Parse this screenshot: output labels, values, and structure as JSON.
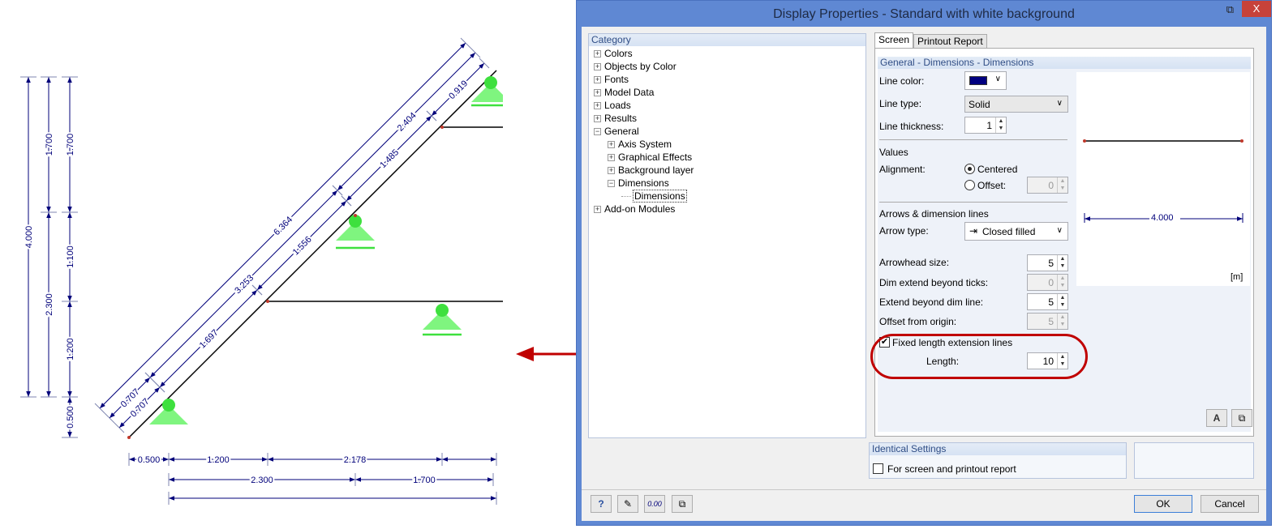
{
  "drawing": {
    "vertical": [
      "4.000",
      "1.700",
      "2.300",
      "1.700",
      "1.100",
      "1.200",
      "0.500"
    ],
    "horizontal": [
      "0.500",
      "1.200",
      "2.178",
      "2.300",
      "1.700"
    ],
    "diagonal": [
      "0.707",
      "1.697",
      "1.556",
      "1.485",
      "0.919",
      "0.707",
      "3.253",
      "2.404",
      "6.364"
    ],
    "colors": {
      "dimension": "#00007a",
      "member": "#000000",
      "support": "#7ff57f",
      "node": "#c0392b",
      "annotation_arrow": "#c00000"
    }
  },
  "dialog": {
    "title": "Display Properties - Standard with white background",
    "close_label": "X",
    "category": {
      "header": "Category",
      "items": [
        {
          "label": "Colors",
          "expander": "+"
        },
        {
          "label": "Objects by Color",
          "expander": "+"
        },
        {
          "label": "Fonts",
          "expander": "+"
        },
        {
          "label": "Model Data",
          "expander": "+"
        },
        {
          "label": "Loads",
          "expander": "+"
        },
        {
          "label": "Results",
          "expander": "+"
        },
        {
          "label": "General",
          "expander": "−"
        },
        {
          "label": "Axis System",
          "expander": "+"
        },
        {
          "label": "Graphical Effects",
          "expander": "+"
        },
        {
          "label": "Background layer",
          "expander": "+"
        },
        {
          "label": "Dimensions",
          "expander": "−"
        },
        {
          "label": "Dimensions",
          "expander": ""
        },
        {
          "label": "Add-on Modules",
          "expander": "+"
        }
      ]
    },
    "tabs": [
      {
        "label": "Screen"
      },
      {
        "label": "Printout Report"
      }
    ],
    "section_title": "General - Dimensions - Dimensions",
    "form": {
      "line_color_label": "Line color:",
      "line_color": "#000080",
      "line_type_label": "Line type:",
      "line_type": "Solid",
      "line_thickness_label": "Line thickness:",
      "line_thickness": "1",
      "values_heading": "Values",
      "alignment_label": "Alignment:",
      "centered_label": "Centered",
      "offset_label": "Offset:",
      "offset_value": "0",
      "arrows_heading": "Arrows & dimension lines",
      "arrow_type_label": "Arrow type:",
      "arrow_type": "Closed filled",
      "arrowhead_size_label": "Arrowhead size:",
      "arrowhead_size": "5",
      "dim_extend_label": "Dim extend beyond ticks:",
      "dim_extend": "0",
      "extend_beyond_label": "Extend beyond dim line:",
      "extend_beyond": "5",
      "offset_origin_label": "Offset from origin:",
      "offset_origin": "5",
      "fixed_length_label": "Fixed length extension lines",
      "fixed_length_checked": true,
      "length_label": "Length:",
      "length": "10"
    },
    "preview": {
      "dimension_value": "4.000",
      "unit": "[m]"
    },
    "identical": {
      "header": "Identical Settings",
      "checkbox_label": "For screen and printout report",
      "checked": false
    },
    "buttons": {
      "ok": "OK",
      "cancel": "Cancel",
      "help_icon": "?",
      "units_icon": "0.00"
    }
  }
}
